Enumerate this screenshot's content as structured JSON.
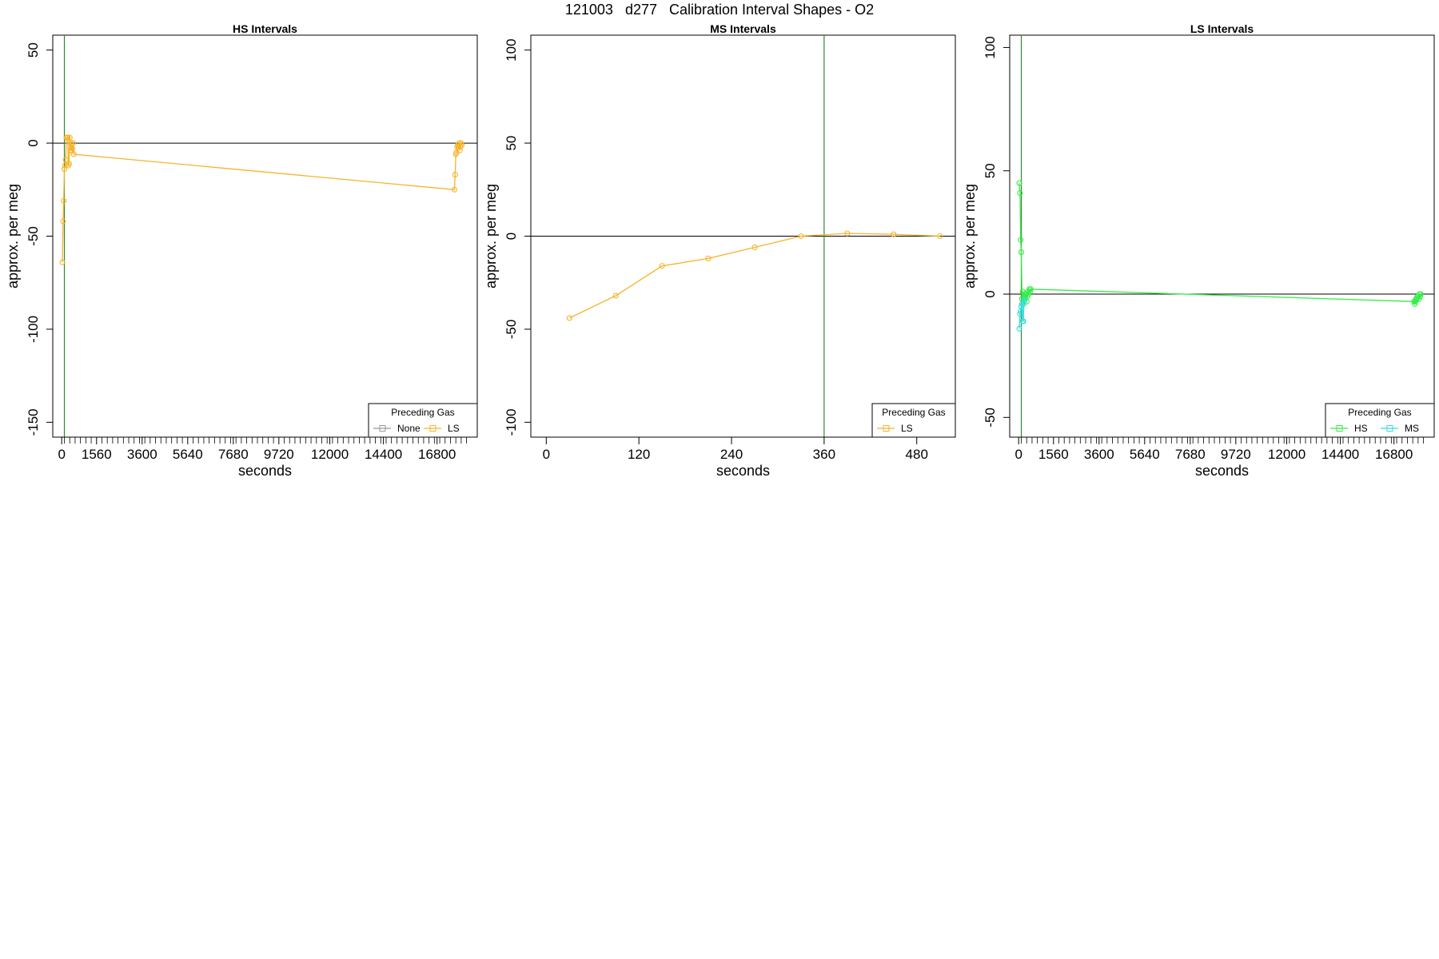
{
  "figure": {
    "title": "121003   d277   Calibration Interval Shapes - O2"
  },
  "chart_data": [
    {
      "type": "line",
      "title": "HS Intervals",
      "xlabel": "seconds",
      "ylabel": "approx. per meg",
      "xlim": [
        -400,
        18600
      ],
      "ylim": [
        -158,
        58
      ],
      "xticks": [
        0,
        1560,
        3600,
        5640,
        7680,
        9720,
        12000,
        14400,
        16800
      ],
      "yticks": [
        50,
        0,
        -50,
        -100,
        -150
      ],
      "minor_xticks": {
        "start": 120,
        "end": 18240,
        "step": 240
      },
      "hline": 0,
      "vline": 120,
      "legend": {
        "title": "Preceding Gas",
        "position": "bottom-right",
        "entries": [
          "None",
          "LS"
        ]
      },
      "series": [
        {
          "name": "None",
          "color": "#999999",
          "x": [],
          "y": []
        },
        {
          "name": "LS",
          "color": "#f7b32b",
          "x": [
            30,
            60,
            90,
            120,
            150,
            180,
            210,
            240,
            270,
            300,
            330,
            360,
            390,
            420,
            450,
            480,
            510,
            540,
            17580,
            17610,
            17640,
            17670,
            17700,
            17730,
            17760,
            17790,
            17820,
            17850,
            17880,
            17910
          ],
          "y": [
            -64,
            -42,
            -31,
            -14,
            -12,
            -9,
            3,
            3,
            3,
            -12,
            -11,
            3,
            -4,
            0,
            -4,
            -3,
            0,
            -6,
            -25,
            -17,
            -6,
            -5,
            -2,
            -1,
            -2,
            0,
            -4,
            -2,
            0,
            -1
          ]
        }
      ]
    },
    {
      "type": "line",
      "title": "MS Intervals",
      "xlabel": "seconds",
      "ylabel": "approx. per meg",
      "xlim": [
        -20,
        530
      ],
      "ylim": [
        -108,
        108
      ],
      "xticks": [
        0,
        120,
        240,
        360,
        480
      ],
      "yticks": [
        100,
        50,
        0,
        -50,
        -100
      ],
      "minor_xticks": {
        "start": 0,
        "end": 0,
        "step": 30
      },
      "hline": 0,
      "vline": 360,
      "legend": {
        "title": "Preceding Gas",
        "position": "bottom-right",
        "entries": [
          "LS"
        ]
      },
      "series": [
        {
          "name": "LS",
          "color": "#f7b32b",
          "x": [
            30,
            90,
            150,
            210,
            270,
            330,
            390,
            450,
            510
          ],
          "y": [
            -44,
            -32,
            -16,
            -12,
            -6,
            0,
            1.5,
            1,
            0
          ]
        }
      ]
    },
    {
      "type": "line",
      "title": "LS Intervals",
      "xlabel": "seconds",
      "ylabel": "approx. per meg",
      "xlim": [
        -400,
        18600
      ],
      "ylim": [
        -58,
        105
      ],
      "xticks": [
        0,
        1560,
        3600,
        5640,
        7680,
        9720,
        12000,
        14400,
        16800
      ],
      "yticks": [
        100,
        50,
        0,
        -50
      ],
      "minor_xticks": {
        "start": 120,
        "end": 18240,
        "step": 240
      },
      "hline": 0,
      "vline": 120,
      "legend": {
        "title": "Preceding Gas",
        "position": "bottom-right",
        "entries": [
          "HS",
          "MS"
        ]
      },
      "series": [
        {
          "name": "HS",
          "color": "#33ee44",
          "x": [
            30,
            60,
            90,
            120,
            150,
            180,
            210,
            240,
            270,
            300,
            330,
            360,
            390,
            420,
            450,
            480,
            510,
            540,
            17700,
            17730,
            17760,
            17790,
            17820,
            17850,
            17880,
            17910,
            17940,
            17970,
            18000
          ],
          "y": [
            45,
            41,
            22,
            17,
            -2,
            1,
            -4,
            -2,
            0,
            -1,
            0,
            -3,
            -1,
            1,
            0,
            2,
            1,
            2,
            -3,
            -4,
            -3,
            -2,
            -2,
            -1,
            -1,
            -2,
            0,
            -1,
            0
          ]
        },
        {
          "name": "MS",
          "color": "#33dddd",
          "x": [
            30,
            60,
            90,
            120,
            150,
            180,
            210,
            240,
            270
          ],
          "y": [
            -14,
            -8,
            -7,
            -5,
            -4,
            -11,
            -11,
            -3,
            -2
          ]
        }
      ]
    }
  ]
}
